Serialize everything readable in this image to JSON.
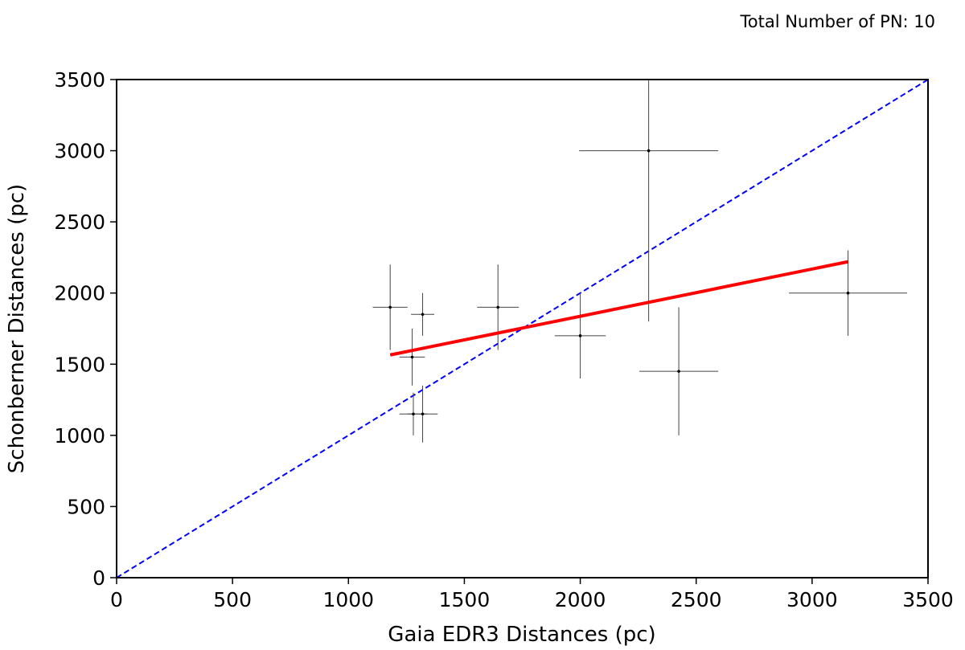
{
  "chart_data": {
    "type": "scatter",
    "title": "",
    "annotation": "Total Number of PN: 10",
    "xlabel": "Gaia EDR3 Distances (pc)",
    "ylabel": "Schonberner Distances (pc)",
    "xlim": [
      0,
      3500
    ],
    "ylim": [
      0,
      3500
    ],
    "xticks": [
      0,
      500,
      1000,
      1500,
      2000,
      2500,
      3000,
      3500
    ],
    "yticks": [
      0,
      500,
      1000,
      1500,
      2000,
      2500,
      3000,
      3500
    ],
    "grid": false,
    "points": [
      {
        "x": 1180,
        "y": 1900,
        "xerr": 75,
        "yerr": 300
      },
      {
        "x": 1275,
        "y": 1550,
        "xerr": 55,
        "yerr": 200
      },
      {
        "x": 1320,
        "y": 1850,
        "xerr": 50,
        "yerr": 150
      },
      {
        "x": 1280,
        "y": 1150,
        "xerr": 60,
        "yerr": 150
      },
      {
        "x": 1320,
        "y": 1150,
        "xerr": 65,
        "yerr": 200
      },
      {
        "x": 1645,
        "y": 1900,
        "xerr": 90,
        "yerr": 300
      },
      {
        "x": 2000,
        "y": 1700,
        "xerr": 110,
        "yerr": 300
      },
      {
        "x": 2295,
        "y": 3000,
        "xerr": 300,
        "yerr": 1200
      },
      {
        "x": 2425,
        "y": 1450,
        "xerr": 170,
        "yerr": 450
      },
      {
        "x": 3155,
        "y": 2000,
        "xerr": 255,
        "yerr": 300
      }
    ],
    "fit_line": {
      "x": [
        1180,
        3155
      ],
      "y": [
        1565,
        2220
      ],
      "color": "#ff0000"
    },
    "identity_line": {
      "x": [
        0,
        3500
      ],
      "y": [
        0,
        3500
      ],
      "color": "#0000ff",
      "style": "dashed"
    },
    "point_color": "#000000"
  }
}
